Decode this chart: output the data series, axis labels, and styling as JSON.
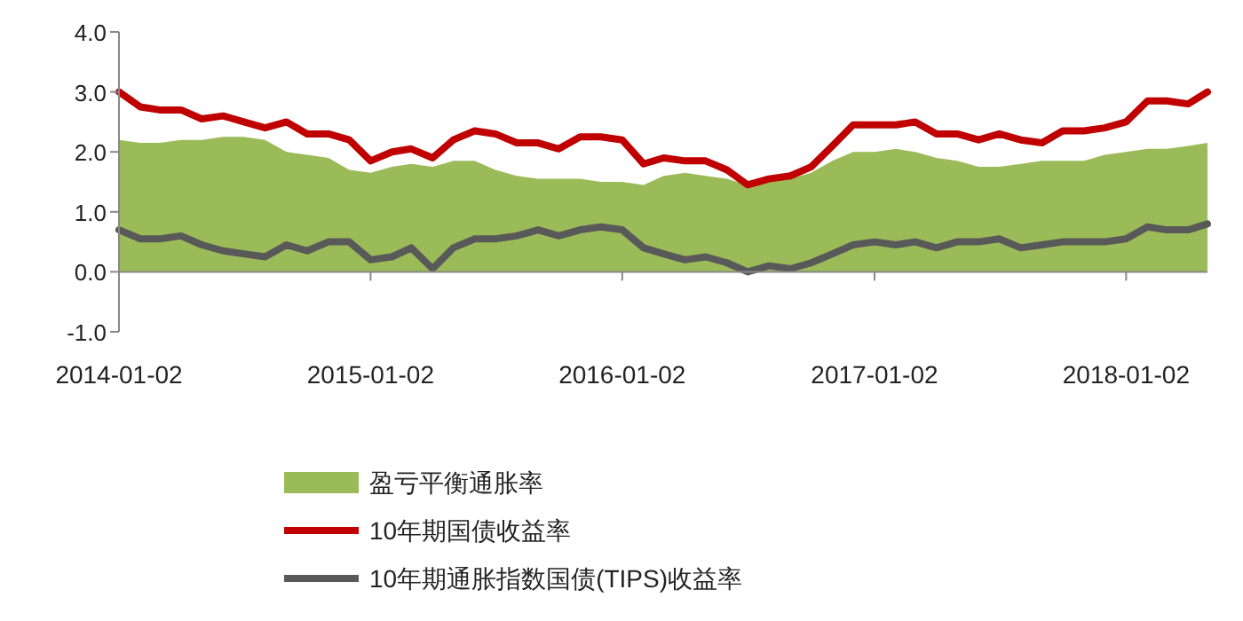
{
  "chart_data": {
    "type": "line",
    "legend": "bottom",
    "x": [
      "2014-01-02",
      "2014-02-02",
      "2014-03-02",
      "2014-04-02",
      "2014-05-02",
      "2014-06-02",
      "2014-07-02",
      "2014-08-02",
      "2014-09-02",
      "2014-10-02",
      "2014-11-02",
      "2014-12-02",
      "2015-01-02",
      "2015-02-02",
      "2015-03-02",
      "2015-04-02",
      "2015-05-02",
      "2015-06-02",
      "2015-07-02",
      "2015-08-02",
      "2015-09-02",
      "2015-10-02",
      "2015-11-02",
      "2015-12-02",
      "2016-01-02",
      "2016-02-02",
      "2016-03-02",
      "2016-04-02",
      "2016-05-02",
      "2016-06-02",
      "2016-07-02",
      "2016-08-02",
      "2016-09-02",
      "2016-10-02",
      "2016-11-02",
      "2016-12-02",
      "2017-01-02",
      "2017-02-02",
      "2017-03-02",
      "2017-04-02",
      "2017-05-02",
      "2017-06-02",
      "2017-07-02",
      "2017-08-02",
      "2017-09-02",
      "2017-10-02",
      "2017-11-02",
      "2017-12-02",
      "2018-01-02",
      "2018-02-02",
      "2018-03-02",
      "2018-04-02",
      "2018-04-30"
    ],
    "xlim": [
      "2014-01-02",
      "2018-04-30"
    ],
    "xticks": [
      "2014-01-02",
      "2015-01-02",
      "2016-01-02",
      "2017-01-02",
      "2018-01-02"
    ],
    "ylim": [
      -1,
      4
    ],
    "yticks": [
      {
        "value": -1,
        "label": "-1.0"
      },
      {
        "value": 0,
        "label": "0.0"
      },
      {
        "value": 1,
        "label": "1.0"
      },
      {
        "value": 2,
        "label": "2.0"
      },
      {
        "value": 3,
        "label": "3.0"
      },
      {
        "value": 4,
        "label": "4.0"
      }
    ],
    "series": [
      {
        "name": "盈亏平衡通胀率",
        "type": "area",
        "color": "#9bbb59",
        "values": [
          2.2,
          2.15,
          2.15,
          2.2,
          2.2,
          2.25,
          2.25,
          2.2,
          2.0,
          1.95,
          1.9,
          1.7,
          1.65,
          1.75,
          1.8,
          1.75,
          1.85,
          1.85,
          1.7,
          1.6,
          1.55,
          1.55,
          1.55,
          1.5,
          1.5,
          1.45,
          1.6,
          1.65,
          1.6,
          1.55,
          1.45,
          1.5,
          1.55,
          1.65,
          1.85,
          2.0,
          2.0,
          2.05,
          2.0,
          1.9,
          1.85,
          1.75,
          1.75,
          1.8,
          1.85,
          1.85,
          1.85,
          1.95,
          2.0,
          2.05,
          2.05,
          2.1,
          2.15
        ]
      },
      {
        "name": "10年期国债收益率",
        "type": "line",
        "color": "#c00000",
        "values": [
          3.0,
          2.75,
          2.7,
          2.7,
          2.55,
          2.6,
          2.5,
          2.4,
          2.5,
          2.3,
          2.3,
          2.2,
          1.85,
          2.0,
          2.05,
          1.9,
          2.2,
          2.35,
          2.3,
          2.15,
          2.15,
          2.05,
          2.25,
          2.25,
          2.2,
          1.8,
          1.9,
          1.85,
          1.85,
          1.7,
          1.45,
          1.55,
          1.6,
          1.75,
          2.1,
          2.45,
          2.45,
          2.45,
          2.5,
          2.3,
          2.3,
          2.2,
          2.3,
          2.2,
          2.15,
          2.35,
          2.35,
          2.4,
          2.5,
          2.85,
          2.85,
          2.8,
          3.0
        ]
      },
      {
        "name": "10年期通胀指数国债(TIPS)收益率",
        "type": "line",
        "color": "#595959",
        "values": [
          0.7,
          0.55,
          0.55,
          0.6,
          0.45,
          0.35,
          0.3,
          0.25,
          0.45,
          0.35,
          0.5,
          0.5,
          0.2,
          0.25,
          0.4,
          0.05,
          0.4,
          0.55,
          0.55,
          0.6,
          0.7,
          0.6,
          0.7,
          0.75,
          0.7,
          0.4,
          0.3,
          0.2,
          0.25,
          0.15,
          0.0,
          0.1,
          0.05,
          0.15,
          0.3,
          0.45,
          0.5,
          0.45,
          0.5,
          0.4,
          0.5,
          0.5,
          0.55,
          0.4,
          0.45,
          0.5,
          0.5,
          0.5,
          0.55,
          0.75,
          0.7,
          0.7,
          0.8
        ]
      }
    ]
  }
}
